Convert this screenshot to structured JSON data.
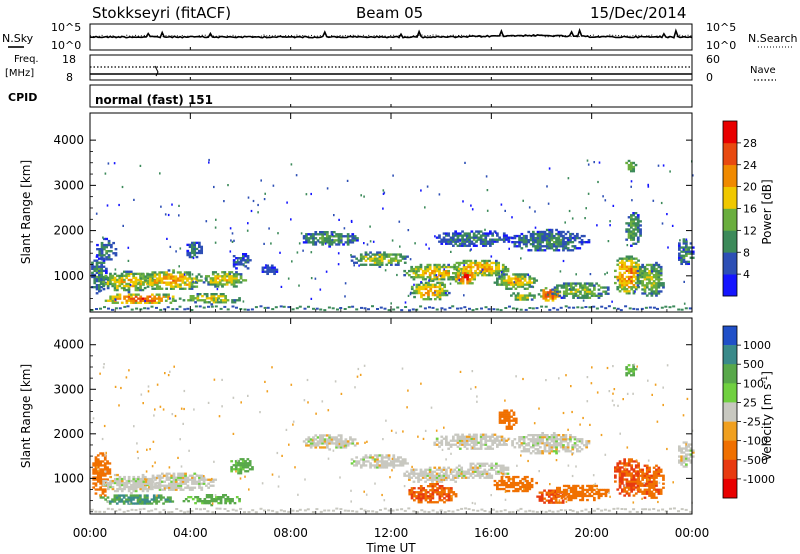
{
  "header": {
    "station": "Stokkseyri (fitACF)",
    "beam": "Beam 05",
    "date": "15/Dec/2014"
  },
  "side_labels": {
    "nsky": "N.Sky",
    "freq_top": "Freq.",
    "freq_unit": "[MHz]",
    "cpid": "CPID",
    "nsearch": "N.Search",
    "nave": "Nave"
  },
  "cpid_text": "normal (fast) 151",
  "chart_data": [
    {
      "type": "line",
      "panel": "noise",
      "left_ticks": [
        "10^5",
        "10^0"
      ],
      "right_ticks": [
        "10^5",
        "10^0"
      ]
    },
    {
      "type": "line",
      "panel": "frequency",
      "left_ticks": [
        "18",
        "8"
      ],
      "right_ticks": [
        "60",
        "0"
      ]
    },
    {
      "type": "heatmap",
      "panel": "power",
      "xlabel": "",
      "ylabel": "Slant Range [km]",
      "ylim": [
        200,
        4600
      ],
      "xlim": [
        0,
        24
      ],
      "yticks": [
        "1000",
        "2000",
        "3000",
        "4000"
      ],
      "colorbar": {
        "label": "Power [dB]",
        "ticks": [
          "4",
          "8",
          "12",
          "16",
          "20",
          "24",
          "28"
        ],
        "colors": [
          "#1515ff",
          "#2d4fb5",
          "#3c8a5a",
          "#6aae3e",
          "#f0c800",
          "#f08a00",
          "#e84a10",
          "#e80000"
        ]
      },
      "blobs": [
        {
          "t": 0.3,
          "r": 1000,
          "dt": 0.35,
          "dr": 450,
          "p": 10
        },
        {
          "t": 1.5,
          "r": 850,
          "dt": 1.2,
          "dr": 230,
          "p": 19
        },
        {
          "t": 3.2,
          "r": 880,
          "dt": 1.4,
          "dr": 230,
          "p": 21
        },
        {
          "t": 5.3,
          "r": 900,
          "dt": 0.9,
          "dr": 200,
          "p": 18
        },
        {
          "t": 2.0,
          "r": 470,
          "dt": 1.6,
          "dr": 130,
          "p": 25
        },
        {
          "t": 4.8,
          "r": 470,
          "dt": 1.2,
          "dr": 120,
          "p": 17
        },
        {
          "t": 0.6,
          "r": 1550,
          "dt": 0.45,
          "dr": 250,
          "p": 10
        },
        {
          "t": 4.1,
          "r": 1550,
          "dt": 0.35,
          "dr": 200,
          "p": 9
        },
        {
          "t": 6.0,
          "r": 1300,
          "dt": 0.4,
          "dr": 200,
          "p": 7
        },
        {
          "t": 7.1,
          "r": 1100,
          "dt": 0.35,
          "dr": 120,
          "p": 6
        },
        {
          "t": 9.5,
          "r": 1800,
          "dt": 1.2,
          "dr": 170,
          "p": 12
        },
        {
          "t": 11.5,
          "r": 1350,
          "dt": 1.2,
          "dr": 170,
          "p": 16
        },
        {
          "t": 13.7,
          "r": 1050,
          "dt": 1.3,
          "dr": 190,
          "p": 20
        },
        {
          "t": 15.5,
          "r": 1150,
          "dt": 1.2,
          "dr": 200,
          "p": 22
        },
        {
          "t": 13.5,
          "r": 650,
          "dt": 0.8,
          "dr": 230,
          "p": 21
        },
        {
          "t": 14.9,
          "r": 950,
          "dt": 0.45,
          "dr": 180,
          "p": 27
        },
        {
          "t": 16.9,
          "r": 850,
          "dt": 0.9,
          "dr": 200,
          "p": 19
        },
        {
          "t": 18.3,
          "r": 570,
          "dt": 0.45,
          "dr": 180,
          "p": 27
        },
        {
          "t": 17.2,
          "r": 520,
          "dt": 0.55,
          "dr": 110,
          "p": 17
        },
        {
          "t": 19.5,
          "r": 650,
          "dt": 1.2,
          "dr": 200,
          "p": 15
        },
        {
          "t": 15.2,
          "r": 1800,
          "dt": 1.6,
          "dr": 200,
          "p": 9
        },
        {
          "t": 18.3,
          "r": 1750,
          "dt": 1.6,
          "dr": 250,
          "p": 10
        },
        {
          "t": 21.4,
          "r": 1000,
          "dt": 0.6,
          "dr": 450,
          "p": 23
        },
        {
          "t": 21.6,
          "r": 2000,
          "dt": 0.35,
          "dr": 400,
          "p": 13
        },
        {
          "t": 22.3,
          "r": 900,
          "dt": 0.6,
          "dr": 400,
          "p": 16
        },
        {
          "t": 23.7,
          "r": 1500,
          "dt": 0.35,
          "dr": 300,
          "p": 11
        },
        {
          "t": 21.5,
          "r": 3400,
          "dt": 0.25,
          "dr": 150,
          "p": 16
        }
      ]
    },
    {
      "type": "heatmap",
      "panel": "velocity",
      "xlabel": "Time UT",
      "ylabel": "Slant Range [km]",
      "ylim": [
        200,
        4600
      ],
      "xlim": [
        0,
        24
      ],
      "yticks": [
        "1000",
        "2000",
        "3000",
        "4000"
      ],
      "xticks": [
        "00:00",
        "04:00",
        "08:00",
        "12:00",
        "16:00",
        "20:00",
        "00:00"
      ],
      "colorbar": {
        "label": "Velocity [m s^-1]",
        "ticks": [
          "1000",
          "500",
          "100",
          "25",
          "-25",
          "-100",
          "-500",
          "-1000"
        ],
        "colors": [
          "#2050c8",
          "#3a8a8a",
          "#58a84a",
          "#70d040",
          "#c8c8c0",
          "#f0a020",
          "#f07000",
          "#e83a10",
          "#e80000"
        ]
      },
      "blobs": [
        {
          "t": 0.4,
          "r": 1050,
          "dt": 0.4,
          "dr": 500,
          "v": -300
        },
        {
          "t": 1.6,
          "r": 870,
          "dt": 1.2,
          "dr": 220,
          "v": 0
        },
        {
          "t": 3.5,
          "r": 900,
          "dt": 1.5,
          "dr": 220,
          "v": 0
        },
        {
          "t": 1.8,
          "r": 500,
          "dt": 1.6,
          "dr": 130,
          "v": 300
        },
        {
          "t": 4.8,
          "r": 500,
          "dt": 1.2,
          "dr": 120,
          "v": 80
        },
        {
          "t": 6.0,
          "r": 1250,
          "dt": 0.5,
          "dr": 200,
          "v": 90
        },
        {
          "t": 9.5,
          "r": 1800,
          "dt": 1.2,
          "dr": 170,
          "v": 0
        },
        {
          "t": 11.5,
          "r": 1350,
          "dt": 1.2,
          "dr": 170,
          "v": 0
        },
        {
          "t": 13.7,
          "r": 1050,
          "dt": 1.3,
          "dr": 190,
          "v": 0
        },
        {
          "t": 15.5,
          "r": 1150,
          "dt": 1.2,
          "dr": 200,
          "v": 0
        },
        {
          "t": 13.6,
          "r": 630,
          "dt": 1.0,
          "dr": 230,
          "v": -450
        },
        {
          "t": 16.9,
          "r": 850,
          "dt": 0.9,
          "dr": 200,
          "v": -200
        },
        {
          "t": 18.4,
          "r": 560,
          "dt": 0.7,
          "dr": 170,
          "v": -500
        },
        {
          "t": 19.5,
          "r": 650,
          "dt": 1.2,
          "dr": 200,
          "v": -300
        },
        {
          "t": 15.2,
          "r": 1800,
          "dt": 1.6,
          "dr": 200,
          "v": 0
        },
        {
          "t": 18.3,
          "r": 1750,
          "dt": 1.6,
          "dr": 250,
          "v": 0
        },
        {
          "t": 21.4,
          "r": 1000,
          "dt": 0.6,
          "dr": 450,
          "v": -600
        },
        {
          "t": 22.3,
          "r": 900,
          "dt": 0.6,
          "dr": 400,
          "v": -400
        },
        {
          "t": 23.7,
          "r": 1500,
          "dt": 0.35,
          "dr": 300,
          "v": 0
        },
        {
          "t": 21.5,
          "r": 3400,
          "dt": 0.25,
          "dr": 150,
          "v": 80
        },
        {
          "t": 16.6,
          "r": 2300,
          "dt": 0.4,
          "dr": 250,
          "v": -250
        }
      ]
    }
  ]
}
